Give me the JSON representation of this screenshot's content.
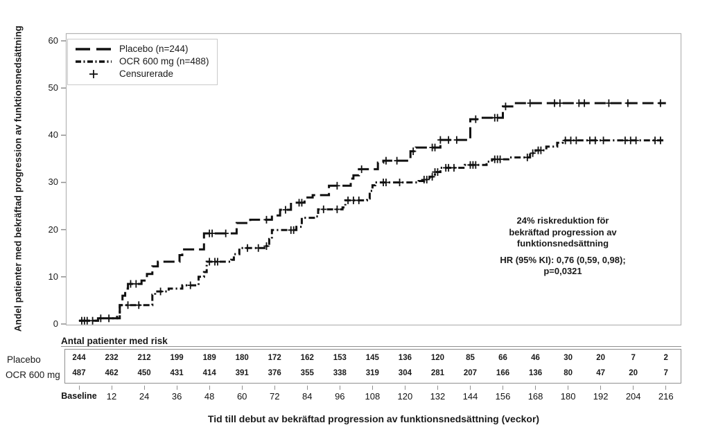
{
  "figure": {
    "y_axis": {
      "title": "Andel patienter med bekräftad progression av funktionsnedsättning"
    },
    "x_axis": {
      "title": "Tid till debut av bekräftad progression av funktionsnedsättning (veckor)"
    },
    "legend": {
      "censored_label": "Censurerade"
    },
    "annotation": {
      "line1": "24% riskreduktion för",
      "line2": "bekräftad progression av",
      "line3": "funktionsnedsättning",
      "line4": "HR (95% KI): 0,76 (0,59, 0,98);",
      "line5": "p=0,0321"
    }
  },
  "colors": {
    "curve": "#111111",
    "plot_border": "#b3b3b3",
    "tick": "#8f8f8f",
    "text": "#1a1a1a"
  },
  "chart_data": {
    "type": "line",
    "subtype": "kaplan-meier-step",
    "title": "",
    "xlabel": "Tid till debut av bekräftad progression av funktionsnedsättning (veckor)",
    "ylabel": "Andel patienter med bekräftad progression av funktionsnedsättning",
    "xlim": [
      0,
      221
    ],
    "ylim": [
      0,
      62
    ],
    "y_ticks": [
      0,
      10,
      20,
      30,
      40,
      50,
      60
    ],
    "x_tick_labels": [
      "Baseline",
      "12",
      "24",
      "36",
      "48",
      "60",
      "72",
      "84",
      "96",
      "108",
      "120",
      "132",
      "144",
      "156",
      "168",
      "180",
      "192",
      "204",
      "216"
    ],
    "grid": false,
    "legend_position": "top-left",
    "hazard_ratio": "0,76",
    "ci_95": "(0,59, 0,98)",
    "p_value": "0,0321",
    "series": [
      {
        "name": "Placebo (n=244)",
        "dash": "long-dash",
        "color": "#111111",
        "steps": [
          [
            0,
            0.7
          ],
          [
            7,
            1.2
          ],
          [
            14,
            1.8
          ],
          [
            15,
            4
          ],
          [
            16,
            6
          ],
          [
            17,
            7.5
          ],
          [
            18,
            8.5
          ],
          [
            23,
            9.2
          ],
          [
            25,
            10.6
          ],
          [
            27,
            12.2
          ],
          [
            29,
            13.2
          ],
          [
            37,
            14.6
          ],
          [
            38,
            15.8
          ],
          [
            46,
            19.2
          ],
          [
            58,
            21.4
          ],
          [
            63,
            22.1
          ],
          [
            71,
            23
          ],
          [
            74,
            24.2
          ],
          [
            78,
            25.7
          ],
          [
            83,
            26.8
          ],
          [
            86,
            27.3
          ],
          [
            92,
            29.3
          ],
          [
            100,
            30.8
          ],
          [
            101,
            31.5
          ],
          [
            103,
            32.8
          ],
          [
            110,
            34.2
          ],
          [
            112,
            34.6
          ],
          [
            122,
            36.6
          ],
          [
            124,
            37.4
          ],
          [
            133,
            39
          ],
          [
            144,
            43.4
          ],
          [
            147,
            43.7
          ],
          [
            156,
            46.1
          ],
          [
            160,
            46.8
          ],
          [
            216,
            46.8
          ]
        ],
        "censored_weeks": [
          1,
          3,
          8,
          11,
          19,
          21,
          48,
          49,
          54,
          69,
          76,
          81,
          82,
          95,
          104,
          113,
          117,
          123,
          130,
          131,
          133,
          136,
          139,
          146,
          153,
          154,
          157,
          166,
          175,
          177,
          184,
          186,
          195,
          202,
          214
        ]
      },
      {
        "name": "OCR 600 mg (n=488)",
        "dash": "dash-dot",
        "color": "#111111",
        "steps": [
          [
            0,
            0.7
          ],
          [
            7,
            1.2
          ],
          [
            15,
            4
          ],
          [
            27,
            6.2
          ],
          [
            28,
            6.9
          ],
          [
            33,
            7.5
          ],
          [
            38,
            8.2
          ],
          [
            44,
            10
          ],
          [
            46,
            11
          ],
          [
            47,
            13.2
          ],
          [
            56,
            13.6
          ],
          [
            57,
            14.8
          ],
          [
            59,
            16.1
          ],
          [
            69,
            16.5
          ],
          [
            70,
            18
          ],
          [
            71,
            19.9
          ],
          [
            80,
            20.6
          ],
          [
            82,
            22.5
          ],
          [
            87,
            22.8
          ],
          [
            88,
            24.3
          ],
          [
            97,
            24.7
          ],
          [
            98,
            26.2
          ],
          [
            106,
            26.6
          ],
          [
            107,
            28.2
          ],
          [
            108,
            29.4
          ],
          [
            109,
            30
          ],
          [
            125,
            30.3
          ],
          [
            127,
            30.6
          ],
          [
            129,
            31.2
          ],
          [
            131,
            32.2
          ],
          [
            133,
            33.1
          ],
          [
            142,
            33.7
          ],
          [
            150,
            34.4
          ],
          [
            152,
            34.9
          ],
          [
            158,
            35.3
          ],
          [
            166,
            36.2
          ],
          [
            168,
            36.8
          ],
          [
            172,
            37.6
          ],
          [
            176,
            38.4
          ],
          [
            178,
            38.9
          ],
          [
            216,
            38.9
          ]
        ],
        "censored_weeks": [
          2,
          5,
          18,
          22,
          30,
          41,
          48,
          50,
          51,
          62,
          66,
          69,
          78,
          79,
          90,
          95,
          99,
          101,
          103,
          112,
          113,
          118,
          127,
          128,
          130,
          131,
          132,
          135,
          136,
          138,
          144,
          145,
          146,
          153,
          154,
          155,
          165,
          167,
          169,
          170,
          179,
          181,
          183,
          188,
          190,
          193,
          201,
          203,
          205,
          212,
          214
        ]
      }
    ],
    "risk_table": {
      "title": "Antal patienter med risk",
      "time_weeks": [
        0,
        12,
        24,
        36,
        48,
        60,
        72,
        84,
        96,
        108,
        120,
        132,
        144,
        156,
        168,
        180,
        192,
        204,
        216
      ],
      "rows": [
        {
          "label": "Placebo",
          "counts": [
            244,
            232,
            212,
            199,
            189,
            180,
            172,
            162,
            153,
            145,
            136,
            120,
            85,
            66,
            46,
            30,
            20,
            7,
            2
          ]
        },
        {
          "label": "OCR 600 mg",
          "counts": [
            487,
            462,
            450,
            431,
            414,
            391,
            376,
            355,
            338,
            319,
            304,
            281,
            207,
            166,
            136,
            80,
            47,
            20,
            7
          ]
        }
      ]
    }
  }
}
